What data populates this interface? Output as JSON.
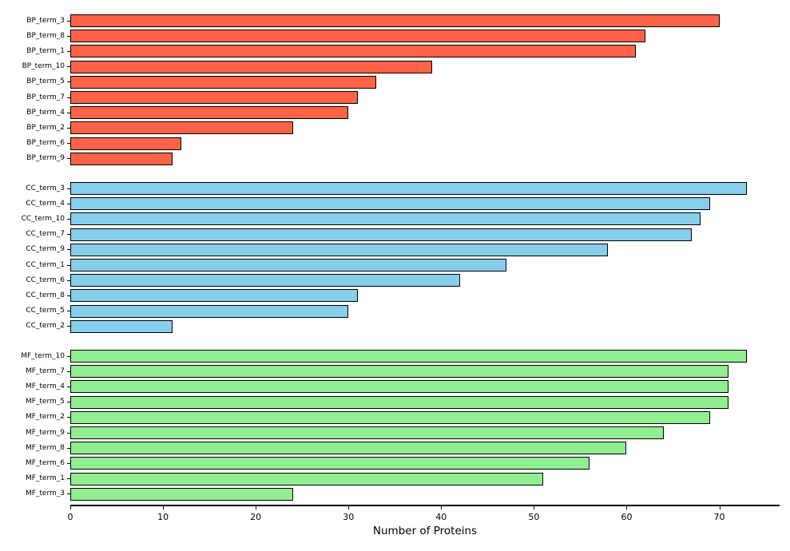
{
  "chart_data": {
    "type": "bar",
    "orientation": "horizontal",
    "title": "",
    "xlabel": "Number of Proteins",
    "ylabel": "",
    "x_ticks": [
      0,
      10,
      20,
      30,
      40,
      50,
      60,
      70
    ],
    "xlim": [
      0,
      76.5
    ],
    "grid": false,
    "legend": false,
    "bar_edge_color": "#000000",
    "background_color": "#ffffff",
    "groups": [
      {
        "name": "BP",
        "color": "#ff6347",
        "bars": [
          {
            "label": "BP_term_3",
            "value": 70
          },
          {
            "label": "BP_term_8",
            "value": 62
          },
          {
            "label": "BP_term_1",
            "value": 61
          },
          {
            "label": "BP_term_10",
            "value": 39
          },
          {
            "label": "BP_term_5",
            "value": 33
          },
          {
            "label": "BP_term_7",
            "value": 31
          },
          {
            "label": "BP_term_4",
            "value": 30
          },
          {
            "label": "BP_term_2",
            "value": 24
          },
          {
            "label": "BP_term_6",
            "value": 12
          },
          {
            "label": "BP_term_9",
            "value": 11
          }
        ]
      },
      {
        "name": "CC",
        "color": "#87ceeb",
        "bars": [
          {
            "label": "CC_term_3",
            "value": 73
          },
          {
            "label": "CC_term_4",
            "value": 69
          },
          {
            "label": "CC_term_10",
            "value": 68
          },
          {
            "label": "CC_term_7",
            "value": 67
          },
          {
            "label": "CC_term_9",
            "value": 58
          },
          {
            "label": "CC_term_1",
            "value": 47
          },
          {
            "label": "CC_term_6",
            "value": 42
          },
          {
            "label": "CC_term_8",
            "value": 31
          },
          {
            "label": "CC_term_5",
            "value": 30
          },
          {
            "label": "CC_term_2",
            "value": 11
          }
        ]
      },
      {
        "name": "MF",
        "color": "#90ee90",
        "bars": [
          {
            "label": "MF_term_10",
            "value": 73
          },
          {
            "label": "MF_term_7",
            "value": 71
          },
          {
            "label": "MF_term_4",
            "value": 71
          },
          {
            "label": "MF_term_5",
            "value": 71
          },
          {
            "label": "MF_term_2",
            "value": 69
          },
          {
            "label": "MF_term_9",
            "value": 64
          },
          {
            "label": "MF_term_8",
            "value": 60
          },
          {
            "label": "MF_term_6",
            "value": 56
          },
          {
            "label": "MF_term_1",
            "value": 51
          },
          {
            "label": "MF_term_3",
            "value": 24
          }
        ]
      }
    ]
  }
}
